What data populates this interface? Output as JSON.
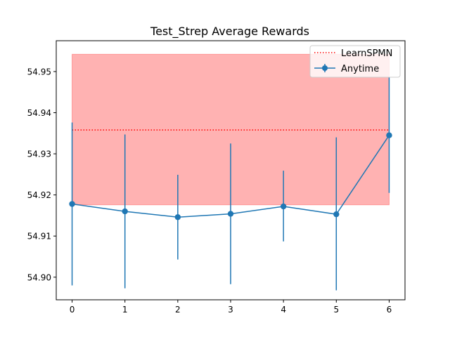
{
  "chart_data": {
    "type": "line",
    "title": "Test_Strep Average Rewards",
    "xlabel": "",
    "ylabel": "",
    "xlim": [
      -0.3,
      6.3
    ],
    "ylim": [
      54.8945,
      54.9575
    ],
    "x_ticks": [
      0,
      1,
      2,
      3,
      4,
      5,
      6
    ],
    "y_ticks": [
      54.9,
      54.91,
      54.92,
      54.93,
      54.94,
      54.95
    ],
    "y_tick_labels": [
      "54.90",
      "54.91",
      "54.92",
      "54.93",
      "54.94",
      "54.95"
    ],
    "legend_position": "top-right",
    "series": [
      {
        "name": "Anytime",
        "color": "#1f77b4",
        "x": [
          0,
          1,
          2,
          3,
          4,
          5,
          6
        ],
        "values": [
          54.9178,
          54.916,
          54.9146,
          54.9154,
          54.9172,
          54.9153,
          54.9345
        ],
        "error_low": [
          54.898,
          54.8973,
          54.9043,
          54.8983,
          54.9087,
          54.8968,
          54.9205
        ],
        "error_high": [
          54.9376,
          54.9347,
          54.9249,
          54.9325,
          54.9259,
          54.934,
          54.9487
        ]
      }
    ],
    "baseline": {
      "name": "LearnSPMN",
      "color": "#ff0000",
      "value": 54.9358,
      "band_low": 54.9176,
      "band_high": 54.9542,
      "band_color": "#ff0000",
      "band_x": [
        0,
        6
      ]
    }
  }
}
